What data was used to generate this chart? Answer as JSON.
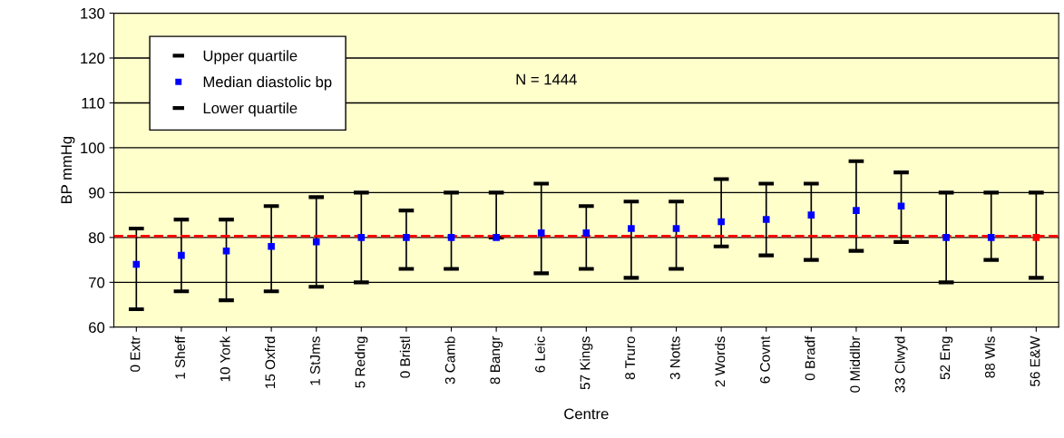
{
  "chart_data": {
    "type": "scatter",
    "xlabel": "Centre",
    "ylabel": "BP mmHg",
    "categories": [
      "0 Extr",
      "1 Sheff",
      "10 York",
      "15 Oxfrd",
      "1 StJms",
      "5 Redng",
      "0 Bristl",
      "3 Camb",
      "8 Bangr",
      "6 Leic",
      "57 Kings",
      "8 Truro",
      "3 Notts",
      "2 Words",
      "6 Covnt",
      "0 Bradf",
      "0 Middlbr",
      "33 Clwyd",
      "52 Eng",
      "88 Wls",
      "56 E&W"
    ],
    "series": [
      {
        "name": "Upper quartile",
        "color": "#000000",
        "values": [
          null,
          null,
          null,
          null,
          null,
          null,
          null,
          null,
          null,
          null,
          null,
          null,
          null,
          null,
          null,
          null,
          null,
          null,
          null,
          null,
          null
        ]
      },
      {
        "name": "Median diastolic bp",
        "color": "#0000ff",
        "marker": "square",
        "colors": [
          "#0000ff",
          "#0000ff",
          "#0000ff",
          "#0000ff",
          "#0000ff",
          "#0000ff",
          "#0000ff",
          "#0000ff",
          "#0000ff",
          "#0000ff",
          "#0000ff",
          "#0000ff",
          "#0000ff",
          "#0000ff",
          "#0000ff",
          "#0000ff",
          "#0000ff",
          "#0000ff",
          "#0000ff",
          "#0000ff",
          "#ff0000"
        ],
        "values": [
          74,
          76,
          77,
          78,
          79,
          80,
          80,
          80,
          80,
          81,
          81,
          82,
          82,
          83.5,
          84,
          85,
          86,
          87,
          80,
          80,
          80
        ],
        "errors": [
          [
            64,
            82
          ],
          [
            68,
            84
          ],
          [
            66,
            84
          ],
          [
            68,
            87
          ],
          [
            69,
            89
          ],
          [
            70,
            90
          ],
          [
            73,
            86
          ],
          [
            73,
            90
          ],
          [
            80,
            90
          ],
          [
            72,
            92
          ],
          [
            73,
            87
          ],
          [
            71,
            88
          ],
          [
            73,
            88
          ],
          [
            78,
            93
          ],
          [
            76,
            92
          ],
          [
            75,
            92
          ],
          [
            77,
            97
          ],
          [
            79,
            94.5
          ],
          [
            70,
            90
          ],
          [
            75,
            90
          ],
          [
            71,
            90
          ]
        ]
      },
      {
        "name": "Lower quartile",
        "color": "#000000",
        "values": [
          null,
          null,
          null,
          null,
          null,
          null,
          null,
          null,
          null,
          null,
          null,
          null,
          null,
          null,
          null,
          null,
          null,
          null,
          null,
          null,
          null
        ]
      }
    ],
    "ylim": [
      60,
      130
    ],
    "yticks": [
      60,
      70,
      80,
      90,
      100,
      110,
      120,
      130
    ],
    "grid": "y",
    "legend": "top left",
    "ref_lines": [
      {
        "axis": "y",
        "value": 80.3,
        "color": "#ff0000",
        "line_style": "dashed"
      }
    ],
    "annotations": [
      "N = 1444"
    ]
  }
}
